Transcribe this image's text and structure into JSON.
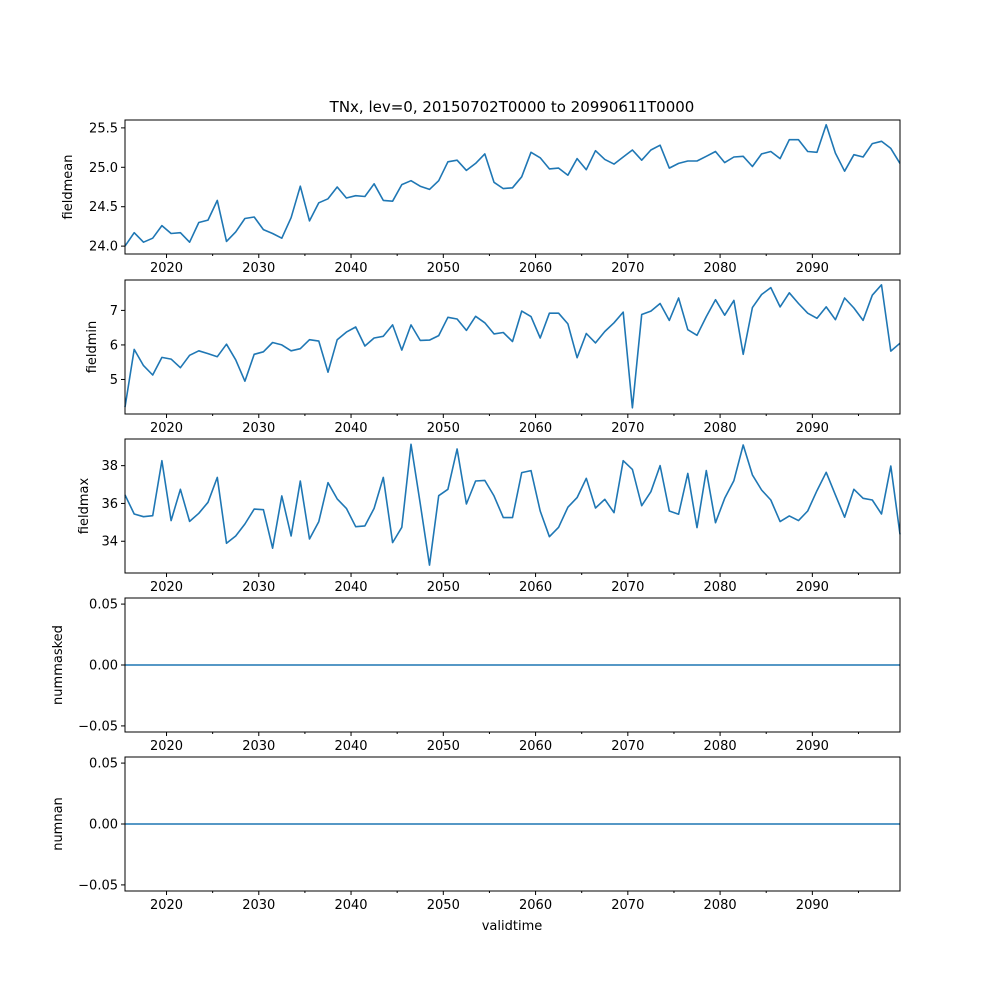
{
  "chart_data": [
    {
      "type": "line",
      "title": "TNx, lev=0, 20150702T0000 to 20990611T0000",
      "xlabel": "",
      "ylabel": "fieldmean",
      "xlim": [
        2015.5,
        2099.5
      ],
      "ylim": [
        23.9,
        25.6
      ],
      "yticks": [
        24.0,
        24.5,
        25.0,
        25.5
      ],
      "ytick_labels": [
        "24.0",
        "24.5",
        "25.0",
        "25.5"
      ],
      "values": [
        24.0,
        24.17,
        24.05,
        24.1,
        24.26,
        24.16,
        24.17,
        24.05,
        24.3,
        24.33,
        24.58,
        24.06,
        24.18,
        24.35,
        24.37,
        24.21,
        24.16,
        24.1,
        24.36,
        24.76,
        24.32,
        24.55,
        24.6,
        24.75,
        24.61,
        24.64,
        24.63,
        24.79,
        24.58,
        24.57,
        24.78,
        24.83,
        24.76,
        24.72,
        24.83,
        25.07,
        25.09,
        24.96,
        25.05,
        25.17,
        24.81,
        24.73,
        24.74,
        24.88,
        25.19,
        25.12,
        24.98,
        24.99,
        24.9,
        25.11,
        24.97,
        25.21,
        25.1,
        25.04,
        25.13,
        25.22,
        25.09,
        25.22,
        25.28,
        24.99,
        25.05,
        25.08,
        25.08,
        25.14,
        25.2,
        25.06,
        25.13,
        25.14,
        25.01,
        25.17,
        25.2,
        25.11,
        25.35,
        25.35,
        25.2,
        25.19,
        25.54,
        25.18,
        24.95,
        25.16,
        25.13,
        25.3,
        25.33,
        25.24,
        25.05
      ]
    },
    {
      "type": "line",
      "ylabel": "fieldmin",
      "xlim": [
        2015.5,
        2099.5
      ],
      "ylim": [
        4.0,
        7.88
      ],
      "yticks": [
        5,
        6,
        7
      ],
      "ytick_labels": [
        "5",
        "6",
        "7"
      ],
      "values": [
        4.2,
        5.87,
        5.4,
        5.13,
        5.64,
        5.59,
        5.34,
        5.7,
        5.83,
        5.75,
        5.66,
        6.02,
        5.57,
        4.95,
        5.73,
        5.8,
        6.07,
        6.0,
        5.83,
        5.89,
        6.15,
        6.11,
        5.21,
        6.15,
        6.37,
        6.52,
        5.97,
        6.2,
        6.25,
        6.58,
        5.85,
        6.58,
        6.13,
        6.14,
        6.27,
        6.8,
        6.75,
        6.42,
        6.83,
        6.64,
        6.32,
        6.36,
        6.1,
        6.98,
        6.82,
        6.2,
        6.92,
        6.92,
        6.61,
        5.63,
        6.33,
        6.06,
        6.39,
        6.64,
        6.95,
        4.18,
        6.88,
        6.98,
        7.2,
        6.71,
        7.36,
        6.44,
        6.28,
        6.82,
        7.31,
        6.86,
        7.29,
        5.73,
        7.08,
        7.46,
        7.66,
        7.1,
        7.51,
        7.2,
        6.92,
        6.77,
        7.1,
        6.73,
        7.36,
        7.07,
        6.71,
        7.44,
        7.74,
        5.82,
        6.05
      ]
    },
    {
      "type": "line",
      "ylabel": "fieldmax",
      "xlim": [
        2015.5,
        2099.5
      ],
      "ylim": [
        32.32,
        39.41
      ],
      "yticks": [
        34,
        36,
        38
      ],
      "ytick_labels": [
        "34",
        "36",
        "38"
      ],
      "values": [
        36.45,
        35.44,
        35.3,
        35.35,
        38.26,
        35.09,
        36.75,
        35.05,
        35.48,
        36.06,
        37.38,
        33.89,
        34.28,
        34.91,
        35.7,
        35.67,
        33.63,
        36.4,
        34.28,
        37.19,
        34.12,
        35.04,
        37.1,
        36.24,
        35.74,
        34.77,
        34.81,
        35.74,
        37.38,
        33.93,
        34.74,
        39.13,
        36.0,
        32.74,
        36.41,
        36.75,
        38.88,
        35.97,
        37.19,
        37.22,
        36.4,
        35.25,
        35.25,
        37.63,
        37.74,
        35.6,
        34.24,
        34.74,
        35.8,
        36.31,
        37.33,
        35.76,
        36.22,
        35.51,
        38.26,
        37.8,
        35.88,
        36.62,
        38.0,
        35.6,
        35.43,
        37.59,
        34.72,
        37.74,
        34.98,
        36.27,
        37.21,
        39.09,
        37.51,
        36.71,
        36.18,
        35.04,
        35.34,
        35.09,
        35.6,
        36.68,
        37.65,
        36.45,
        35.27,
        36.75,
        36.27,
        36.18,
        35.44,
        37.98,
        34.37
      ]
    },
    {
      "type": "line",
      "ylabel": "nummasked",
      "xlim": [
        2015.5,
        2099.5
      ],
      "ylim": [
        -0.055,
        0.055
      ],
      "yticks": [
        -0.05,
        0.0,
        0.05
      ],
      "ytick_labels": [
        "−0.05",
        "0.00",
        "0.05"
      ],
      "constant_value": 0
    },
    {
      "type": "line",
      "ylabel": "numnan",
      "xlabel": "validtime",
      "xlim": [
        2015.5,
        2099.5
      ],
      "ylim": [
        -0.055,
        0.055
      ],
      "yticks": [
        -0.05,
        0.0,
        0.05
      ],
      "ytick_labels": [
        "−0.05",
        "0.00",
        "0.05"
      ],
      "constant_value": 0
    }
  ],
  "x_start_year": 2015.5,
  "x_step_years": 1,
  "xticks": [
    2020,
    2030,
    2040,
    2050,
    2060,
    2070,
    2080,
    2090
  ],
  "xtick_labels": [
    "2020",
    "2030",
    "2040",
    "2050",
    "2060",
    "2070",
    "2080",
    "2090"
  ],
  "xminor_ticks": [
    2025,
    2035,
    2045,
    2055,
    2065,
    2075,
    2085,
    2095
  ],
  "line_color": "#1f77b4"
}
